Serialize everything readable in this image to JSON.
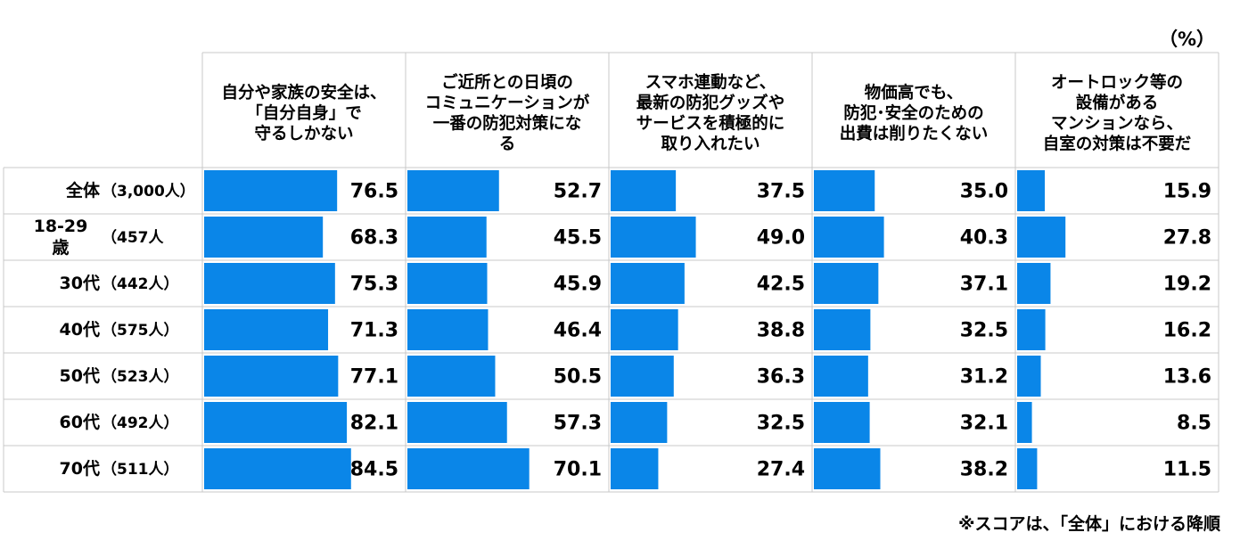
{
  "unit_label": "（%）",
  "footnote": "※スコアは、「全体」における降順",
  "colors": {
    "bar": "#0a86e8",
    "grid": "#c8c8c8",
    "text": "#000000"
  },
  "chart_data": {
    "type": "bar",
    "orientation": "horizontal",
    "xlim": [
      0,
      100
    ],
    "columns": [
      {
        "label_lines": [
          "自分や家族の安全は、",
          "「自分自身」で",
          "守るしかない"
        ]
      },
      {
        "label_lines": [
          "ご近所との日頃の",
          "コミュニケーションが",
          "一番の防犯対策にな",
          "る"
        ]
      },
      {
        "label_lines": [
          "スマホ連動など、",
          "最新の防犯グッズや",
          "サービスを積極的に",
          "取り入れたい"
        ]
      },
      {
        "label_lines": [
          "物価高でも、",
          "防犯･安全のための",
          "出費は削りたくない"
        ]
      },
      {
        "label_lines": [
          "オートロック等の",
          "設備がある",
          "マンションなら、",
          "自室の対策は不要だ"
        ]
      }
    ],
    "rows": [
      {
        "name": "全体",
        "name_lines": [
          "全体"
        ],
        "n": "（3,000人）",
        "values": [
          76.5,
          52.7,
          37.5,
          35.0,
          15.9
        ]
      },
      {
        "name": "18-29歳",
        "name_lines": [
          "18-29",
          "歳"
        ],
        "n": "（457人",
        "values": [
          68.3,
          45.5,
          49.0,
          40.3,
          27.8
        ]
      },
      {
        "name": "30代",
        "name_lines": [
          "30代"
        ],
        "n": "（442人）",
        "values": [
          75.3,
          45.9,
          42.5,
          37.1,
          19.2
        ]
      },
      {
        "name": "40代",
        "name_lines": [
          "40代"
        ],
        "n": "（575人）",
        "values": [
          71.3,
          46.4,
          38.8,
          32.5,
          16.2
        ]
      },
      {
        "name": "50代",
        "name_lines": [
          "50代"
        ],
        "n": "（523人）",
        "values": [
          77.1,
          50.5,
          36.3,
          31.2,
          13.6
        ]
      },
      {
        "name": "60代",
        "name_lines": [
          "60代"
        ],
        "n": "（492人）",
        "values": [
          82.1,
          57.3,
          32.5,
          32.1,
          8.5
        ]
      },
      {
        "name": "70代",
        "name_lines": [
          "70代"
        ],
        "n": "（511人）",
        "values": [
          84.5,
          70.1,
          27.4,
          38.2,
          11.5
        ]
      }
    ]
  }
}
